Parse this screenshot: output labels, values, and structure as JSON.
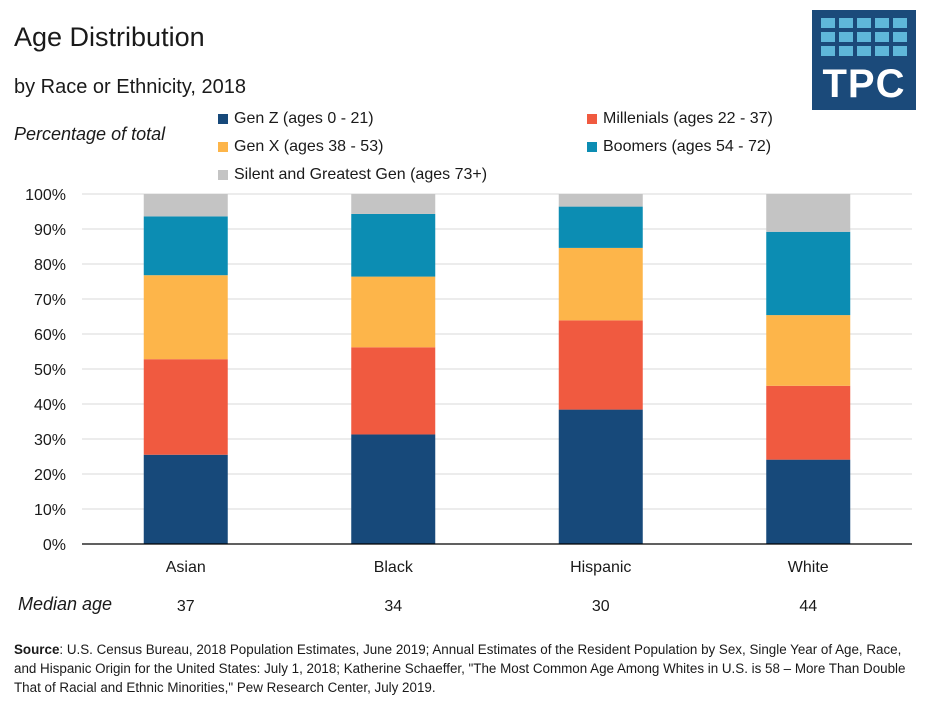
{
  "colors": {
    "gen_z": "#17497a",
    "millenials": "#f05a40",
    "gen_x": "#fdb54a",
    "boomers": "#0c8db3",
    "silent": "#c4c4c4",
    "logo_bg": "#1b4a7a",
    "logo_cell": "#5fb7d9",
    "axis": "#000000",
    "grid": "#d9d9d9"
  },
  "logo": {
    "text": "TPC"
  },
  "median": {
    "label": "Median age",
    "values": [
      "37",
      "34",
      "30",
      "44"
    ]
  },
  "source": {
    "label": "Source",
    "text": ": U.S. Census Bureau, 2018 Population Estimates, June 2019; Annual Estimates of the Resident Population by Sex, Single Year of Age, Race, and Hispanic Origin for the United States: July 1, 2018; Katherine Schaeffer, \"The Most Common Age Among Whites in U.S. is 58 – More Than Double That of Racial and Ethnic Minorities,\" Pew Research Center, July 2019."
  },
  "chart_data": {
    "type": "bar",
    "stacked": true,
    "title": "Age Distribution",
    "subtitle": "by Race or Ethnicity, 2018",
    "ylabel": "Percentage of total",
    "xlabel": "",
    "ylim": [
      0,
      100
    ],
    "yticks": [
      "0%",
      "10%",
      "20%",
      "30%",
      "40%",
      "50%",
      "60%",
      "70%",
      "80%",
      "90%",
      "100%"
    ],
    "grid": true,
    "legend": "top",
    "categories": [
      "Asian",
      "Black",
      "Hispanic",
      "White"
    ],
    "series": [
      {
        "name": "Gen Z (ages 0 - 21)",
        "values": [
          25.5,
          31.3,
          38.4,
          24.1
        ]
      },
      {
        "name": "Millenials (ages 22 - 37)",
        "values": [
          27.3,
          24.9,
          25.5,
          21.1
        ]
      },
      {
        "name": "Gen X (ages 38 - 53)",
        "values": [
          24.0,
          20.2,
          20.7,
          20.2
        ]
      },
      {
        "name": "Boomers (ages 54 - 72)",
        "values": [
          16.8,
          17.9,
          11.8,
          23.8
        ]
      },
      {
        "name": "Silent and Greatest Gen (ages 73+)",
        "values": [
          6.4,
          5.7,
          3.6,
          10.8
        ]
      }
    ]
  }
}
